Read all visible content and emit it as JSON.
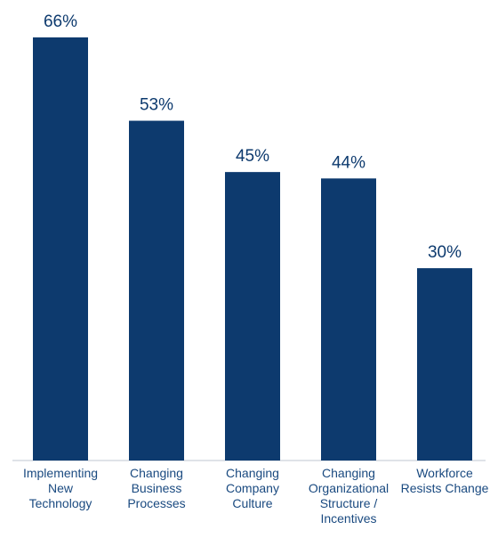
{
  "chart_data": {
    "type": "bar",
    "title": "",
    "xlabel": "",
    "ylabel": "",
    "ylim": [
      0,
      66
    ],
    "grid": false,
    "legend": "none",
    "bar_color": "#0d3a6e",
    "categories": [
      [
        "Implementing",
        "New",
        "Technology"
      ],
      [
        "Changing",
        "Business",
        "Processes"
      ],
      [
        "Changing",
        "Company",
        "Culture"
      ],
      [
        "Changing",
        "Organizational",
        "Structure /",
        "Incentives"
      ],
      [
        "Workforce",
        "Resists Change"
      ]
    ],
    "values": [
      66,
      53,
      45,
      44,
      30
    ],
    "value_labels": [
      "66%",
      "53%",
      "45%",
      "44%",
      "30%"
    ]
  }
}
